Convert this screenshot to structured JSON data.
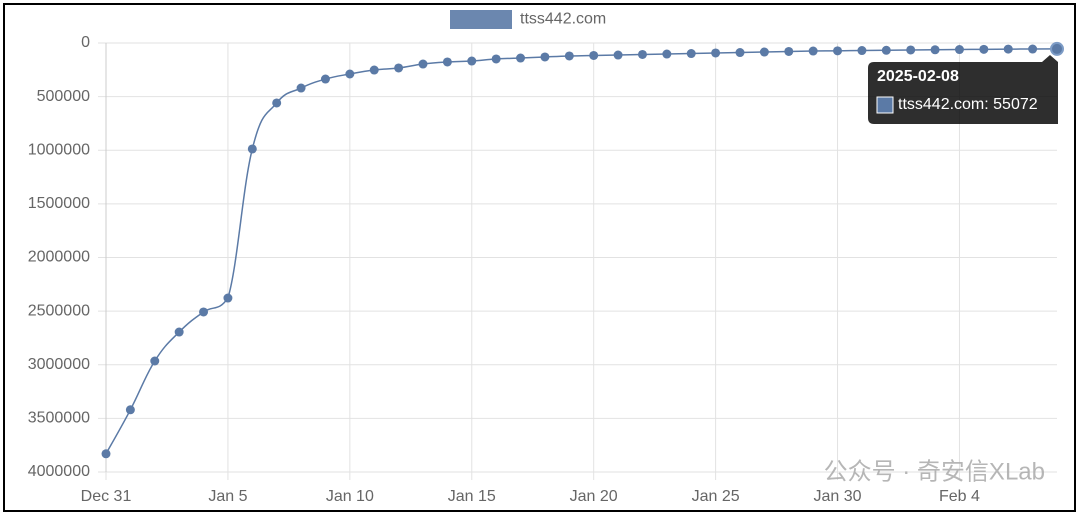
{
  "chart_data": {
    "type": "line",
    "categories": [
      "Dec 31",
      null,
      null,
      null,
      null,
      "Jan 5",
      null,
      null,
      null,
      null,
      "Jan 10",
      null,
      null,
      null,
      null,
      "Jan 15",
      null,
      null,
      null,
      null,
      "Jan 20",
      null,
      null,
      null,
      null,
      "Jan 25",
      null,
      null,
      null,
      null,
      "Jan 30",
      null,
      null,
      null,
      null,
      "Feb 4",
      null,
      null,
      null,
      null
    ],
    "series": [
      {
        "name": "ttss442.com",
        "color": "#5b7aa6",
        "values": [
          3830000,
          3420000,
          2965000,
          2695000,
          2508000,
          2378000,
          988000,
          559000,
          420000,
          336000,
          289000,
          252000,
          233000,
          196000,
          177000,
          168000,
          149000,
          140000,
          130000,
          121000,
          116000,
          112000,
          107000,
          103000,
          98000,
          93000,
          89000,
          84000,
          79000,
          75000,
          73000,
          70000,
          68000,
          65000,
          63000,
          61000,
          59000,
          57000,
          56000,
          55072
        ]
      }
    ],
    "ylim": [
      0,
      4000000
    ],
    "yticks": [
      0,
      500000,
      1000000,
      1500000,
      2000000,
      2500000,
      3000000,
      3500000,
      4000000
    ],
    "y_reversed": true,
    "grid": true,
    "legend": "top",
    "tooltip": {
      "title": "2025-02-08",
      "label": "ttss442.com: 55072"
    },
    "annotations": [
      "公众号 · 奇安信XLab"
    ]
  }
}
